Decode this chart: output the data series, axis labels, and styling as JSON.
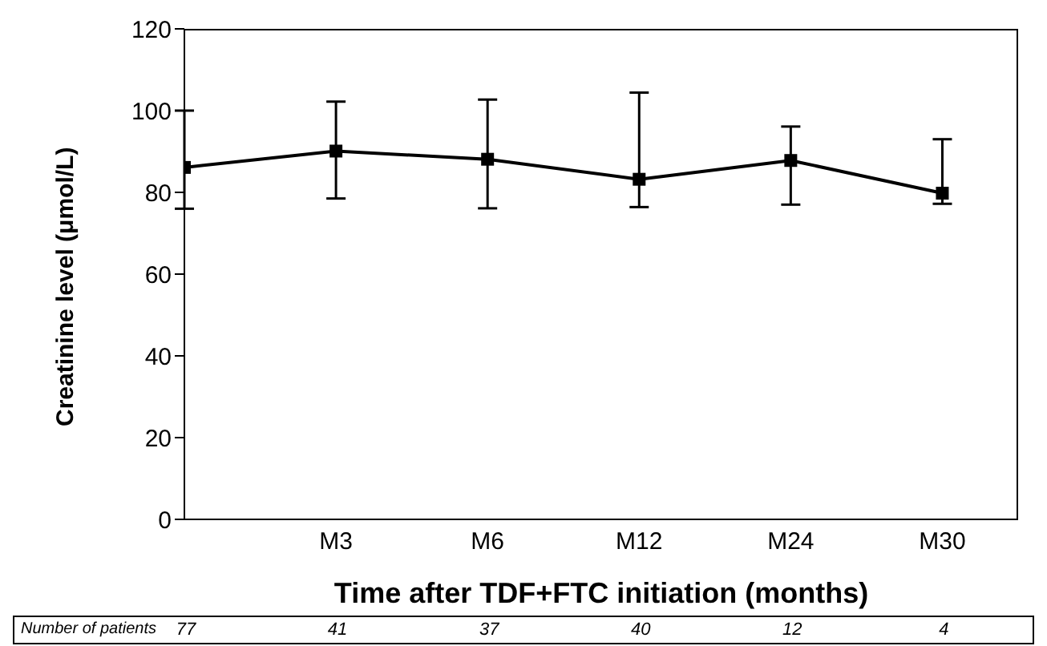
{
  "chart_data": {
    "type": "line",
    "xlabel": "Time after TDF+FTC initiation (months)",
    "ylabel": "Creatinine level (μmol/L)",
    "categories": [
      null,
      "M3",
      "M6",
      "M12",
      "M24",
      "M30"
    ],
    "series": [
      {
        "color": "#000000",
        "values": [
          86.1,
          90.1,
          88.1,
          83.2,
          87.8,
          79.8
        ],
        "errors": [
          [
            76,
            100
          ],
          [
            78.5,
            102.2
          ],
          [
            76.1,
            102.7
          ],
          [
            76.4,
            104.4
          ],
          [
            77,
            96.1
          ],
          [
            77.2,
            93
          ]
        ]
      }
    ],
    "ylim": [
      0,
      120
    ],
    "yticks": [
      0,
      20,
      40,
      60,
      80,
      100,
      120
    ],
    "grid": false,
    "legend": false,
    "marker": "square",
    "line_style": "solid",
    "annotations": [
      "Number of patients",
      "77",
      "41",
      "37",
      "40",
      "12",
      "4"
    ]
  }
}
